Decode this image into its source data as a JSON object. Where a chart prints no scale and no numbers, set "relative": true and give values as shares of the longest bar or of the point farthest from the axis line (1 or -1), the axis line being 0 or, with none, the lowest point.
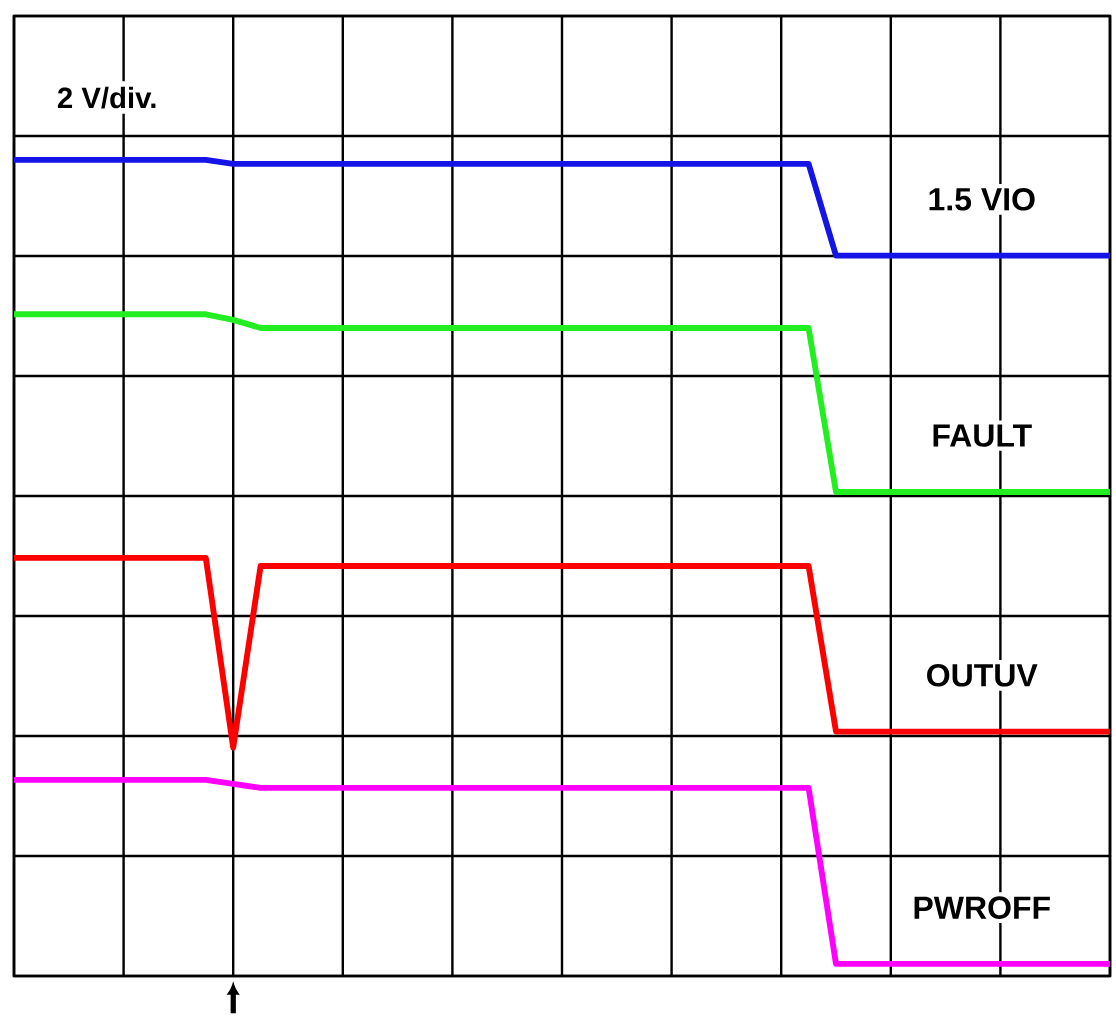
{
  "chart_data": {
    "type": "line",
    "relative": true,
    "grid": true,
    "categories": [
      null,
      null,
      null,
      null,
      null,
      null,
      null,
      null,
      null,
      null,
      null,
      null,
      null,
      null,
      null,
      null,
      null,
      null,
      null,
      null,
      null,
      null,
      null,
      null,
      null,
      null,
      null,
      null,
      null,
      null,
      null,
      null,
      null,
      null,
      null,
      null,
      null,
      null,
      null,
      null,
      null
    ],
    "annotations": [
      "2 V/div."
    ],
    "series": [
      {
        "name": "1.5 VIO",
        "color": "#1414e6",
        "values": [
          1,
          1,
          1,
          1,
          1,
          1,
          1,
          1,
          0.995,
          0.995,
          0.995,
          0.995,
          0.995,
          0.995,
          0.995,
          0.995,
          0.995,
          0.995,
          0.995,
          0.995,
          0.995,
          0.995,
          0.995,
          0.995,
          0.995,
          0.995,
          0.995,
          0.995,
          0.995,
          0.995,
          0.881,
          0.881,
          0.881,
          0.881,
          0.881,
          0.881,
          0.881,
          0.881,
          0.881,
          0.881,
          0.881
        ]
      },
      {
        "name": "FAULT",
        "color": "#22ee22",
        "values": [
          0.808,
          0.808,
          0.808,
          0.808,
          0.808,
          0.808,
          0.808,
          0.808,
          0.801,
          0.791,
          0.791,
          0.791,
          0.791,
          0.791,
          0.791,
          0.791,
          0.791,
          0.791,
          0.791,
          0.791,
          0.791,
          0.791,
          0.791,
          0.791,
          0.791,
          0.791,
          0.791,
          0.791,
          0.791,
          0.791,
          0.587,
          0.587,
          0.587,
          0.587,
          0.587,
          0.587,
          0.587,
          0.587,
          0.587,
          0.587,
          0.587
        ]
      },
      {
        "name": "OUTUV",
        "color": "#ff0000",
        "values": [
          0.505,
          0.505,
          0.505,
          0.505,
          0.505,
          0.505,
          0.505,
          0.505,
          0.269,
          0.495,
          0.495,
          0.495,
          0.495,
          0.495,
          0.495,
          0.495,
          0.495,
          0.495,
          0.495,
          0.495,
          0.495,
          0.495,
          0.495,
          0.495,
          0.495,
          0.495,
          0.495,
          0.495,
          0.495,
          0.495,
          0.289,
          0.289,
          0.289,
          0.289,
          0.289,
          0.289,
          0.289,
          0.289,
          0.289,
          0.289,
          0.289
        ]
      },
      {
        "name": "PWROFF",
        "color": "#ff00ff",
        "values": [
          0.229,
          0.229,
          0.229,
          0.229,
          0.229,
          0.229,
          0.229,
          0.229,
          0.224,
          0.219,
          0.219,
          0.219,
          0.219,
          0.219,
          0.219,
          0.219,
          0.219,
          0.219,
          0.219,
          0.219,
          0.219,
          0.219,
          0.219,
          0.219,
          0.219,
          0.219,
          0.219,
          0.219,
          0.219,
          0.219,
          0,
          0,
          0,
          0,
          0,
          0,
          0,
          0,
          0,
          0,
          0
        ]
      }
    ]
  }
}
